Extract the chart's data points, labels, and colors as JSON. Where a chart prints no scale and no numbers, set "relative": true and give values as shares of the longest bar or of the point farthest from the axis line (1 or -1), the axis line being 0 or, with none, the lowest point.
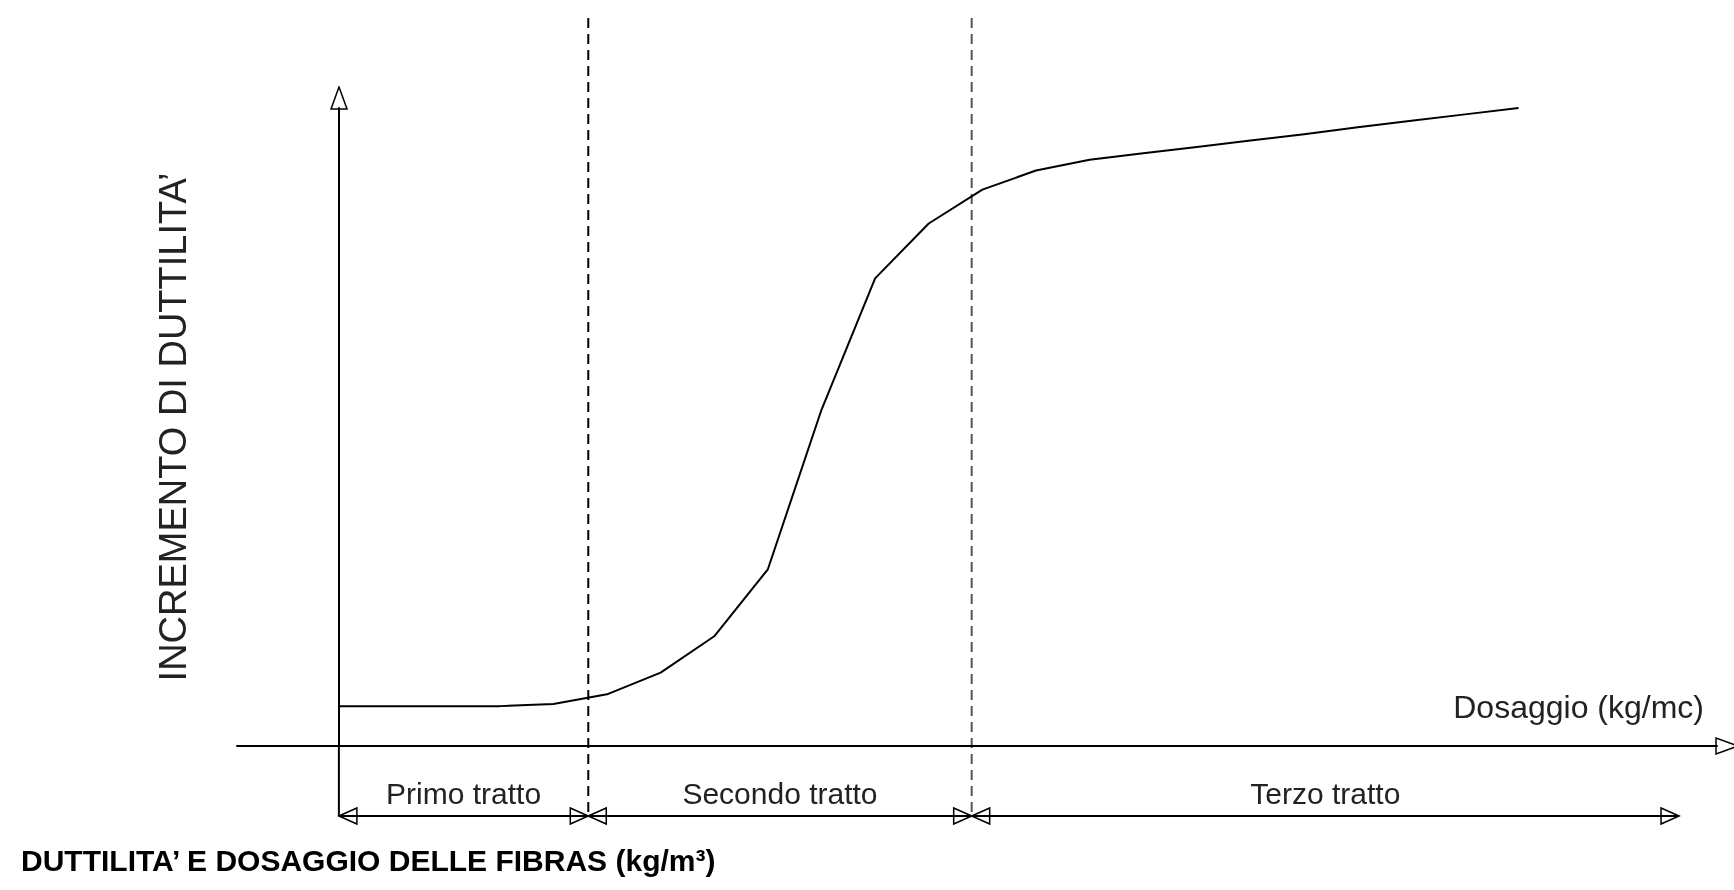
{
  "chart_data": {
    "type": "line",
    "relative": true,
    "title": "DUTTILITA’ E DOSAGGIO DELLE FIBRAS (kg/m³)",
    "xlabel": "Dosaggio (kg/mc)",
    "ylabel": "INCREMENTO DI DUTTILITA’",
    "categories": [
      null,
      null,
      null,
      null,
      null,
      null,
      null,
      null,
      null,
      null,
      null,
      null,
      null,
      null,
      null,
      null,
      null,
      null,
      null,
      null,
      null,
      null,
      null
    ],
    "series": [
      {
        "color": "#000000",
        "values": [
          0.0625,
          0.0625,
          0.0625,
          0.0625,
          0.066,
          0.081,
          0.115,
          0.172,
          0.277,
          0.527,
          0.733,
          0.819,
          0.872,
          0.902,
          0.919,
          0.929,
          0.939,
          0.949,
          0.959,
          0.97,
          0.98,
          0.99,
          1
        ]
      }
    ],
    "annotations": [
      "Primo tratto",
      "Secondo tratto",
      "Terzo tratto"
    ],
    "marker": "none",
    "line_style": "solid",
    "grid": false
  }
}
